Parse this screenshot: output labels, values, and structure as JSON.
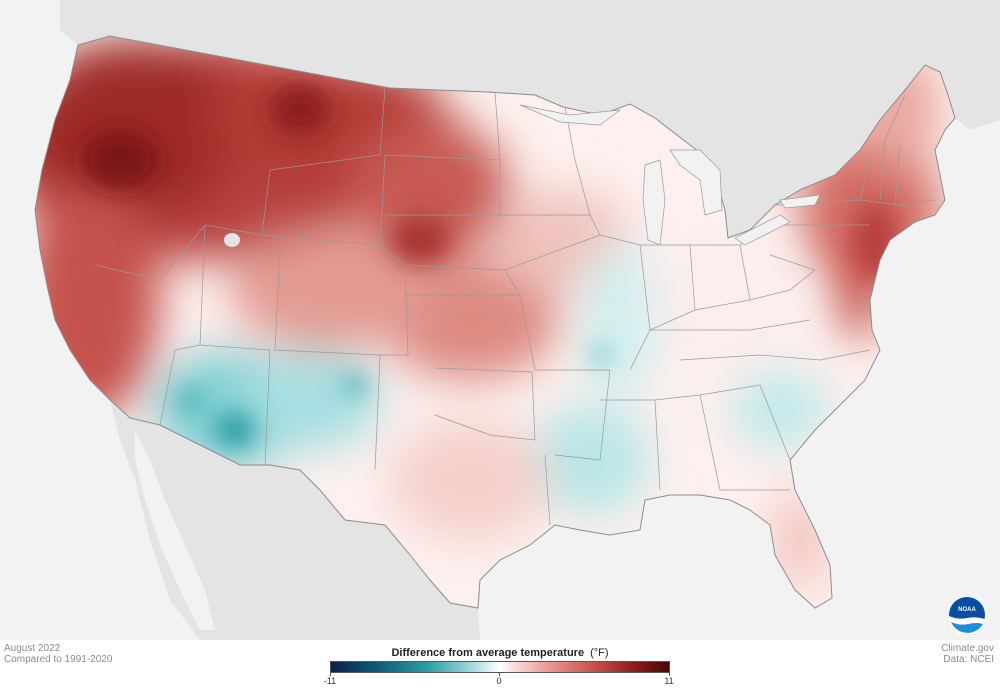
{
  "footer": {
    "date_line": "August 2022",
    "baseline_line": "Compared to 1991-2020",
    "source_site": "Climate.gov",
    "data_source": "Data: NCEI"
  },
  "legend": {
    "title": "Difference from average temperature",
    "unit": "(°F)",
    "min_label": "-11",
    "mid_label": "0",
    "max_label": "11",
    "range": [
      -11,
      11
    ],
    "colors": {
      "cold_extreme": "#0b1f4f",
      "cool": "#2a9ba4",
      "neutral": "#ffffff",
      "warm": "#c8504a",
      "hot_extreme": "#4a0506"
    }
  },
  "logo": {
    "text": "NOAA"
  },
  "map": {
    "background_color": "#f2f2f2",
    "land_outside_color": "#e3e3e3",
    "state_border_color": "#8c8c8c",
    "regions": [
      {
        "name": "Pacific Northwest",
        "anomaly_f": 7
      },
      {
        "name": "Northern Rockies",
        "anomaly_f": 6
      },
      {
        "name": "California",
        "anomaly_f": 5
      },
      {
        "name": "Northern Plains",
        "anomaly_f": 4
      },
      {
        "name": "Central Plains",
        "anomaly_f": 3
      },
      {
        "name": "Northeast",
        "anomaly_f": 4
      },
      {
        "name": "Southwest",
        "anomaly_f": -3
      },
      {
        "name": "Lower Mississippi Valley",
        "anomaly_f": -1
      },
      {
        "name": "Southeast",
        "anomaly_f": -1
      },
      {
        "name": "Florida",
        "anomaly_f": 1
      },
      {
        "name": "Texas",
        "anomaly_f": 1
      }
    ]
  }
}
